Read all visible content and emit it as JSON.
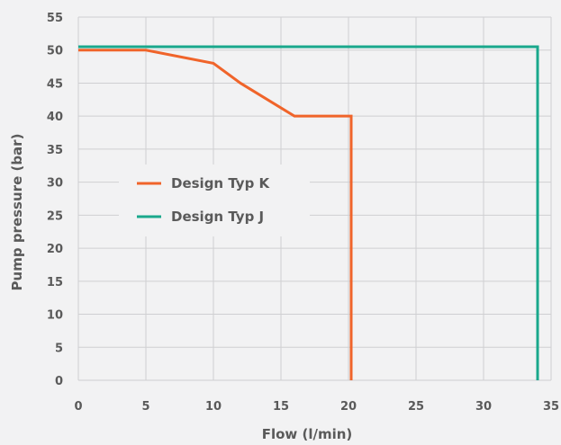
{
  "chart_data": {
    "type": "line",
    "title": "",
    "xlabel": "Flow (l/min)",
    "ylabel": "Pump pressure (bar)",
    "xlim": [
      0,
      35
    ],
    "ylim": [
      0,
      55
    ],
    "xticks": [
      "0",
      "5",
      "10",
      "15",
      "20",
      "25",
      "30",
      "35"
    ],
    "yticks": [
      "0",
      "5",
      "10",
      "15",
      "20",
      "25",
      "30",
      "35",
      "40",
      "45",
      "50",
      "55"
    ],
    "grid": true,
    "legend_position": "center-left",
    "series": [
      {
        "name": "Design Typ K",
        "color": "#f0642a",
        "points": [
          [
            0,
            50
          ],
          [
            5,
            50
          ],
          [
            10,
            48
          ],
          [
            12,
            45
          ],
          [
            16,
            40
          ],
          [
            20.2,
            40
          ],
          [
            20.2,
            0
          ]
        ]
      },
      {
        "name": "Design Typ J",
        "color": "#1aa88c",
        "points": [
          [
            0,
            50.5
          ],
          [
            34,
            50.5
          ],
          [
            34,
            0
          ]
        ]
      }
    ]
  }
}
